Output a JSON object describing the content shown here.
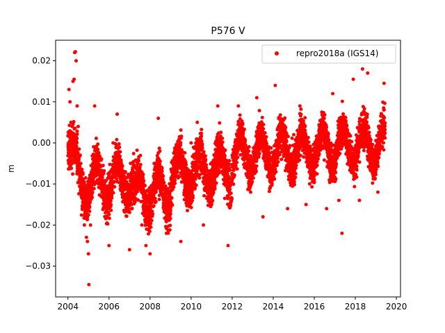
{
  "chart_data": {
    "type": "scatter",
    "title": "P576 V",
    "xlabel": "",
    "ylabel": "m",
    "xlim": [
      2003.4,
      2020.2
    ],
    "ylim": [
      -0.0375,
      0.025
    ],
    "x_ticks": [
      2004,
      2006,
      2008,
      2010,
      2012,
      2014,
      2016,
      2018,
      2020
    ],
    "y_ticks": [
      -0.03,
      -0.02,
      -0.01,
      0.0,
      0.01,
      0.02
    ],
    "x_tick_labels": [
      "2004",
      "2006",
      "2008",
      "2010",
      "2012",
      "2014",
      "2016",
      "2018",
      "2020"
    ],
    "y_tick_labels": [
      "−0.03",
      "−0.02",
      "−0.01",
      "0.00",
      "0.01",
      "0.02"
    ],
    "grid": false,
    "legend_position": "top-right",
    "series": [
      {
        "name": "repro2018a (IGS14)",
        "color": "#ff0000",
        "marker": "circle",
        "x_range": [
          2004.0,
          2019.45
        ],
        "points": [
          [
            2004.05,
            0.013
          ],
          [
            2004.1,
            0.01
          ],
          [
            2004.15,
            0.005
          ],
          [
            2004.2,
            0.002
          ],
          [
            2004.25,
            0.015
          ],
          [
            2004.3,
            0.0155
          ],
          [
            2004.33,
            0.022
          ],
          [
            2004.36,
            0.0222
          ],
          [
            2004.4,
            0.02
          ],
          [
            2004.45,
            0.009
          ],
          [
            2004.5,
            0.004
          ],
          [
            2004.6,
            -0.003
          ],
          [
            2004.7,
            -0.012
          ],
          [
            2004.8,
            -0.02
          ],
          [
            2004.9,
            -0.023
          ],
          [
            2004.95,
            -0.024
          ],
          [
            2005.0,
            -0.027
          ],
          [
            2005.02,
            -0.0345
          ],
          [
            2005.1,
            -0.02
          ],
          [
            2005.2,
            -0.012
          ],
          [
            2005.3,
            0.009
          ],
          [
            2005.5,
            -0.01
          ],
          [
            2005.8,
            -0.013
          ],
          [
            2006.0,
            -0.025
          ],
          [
            2006.2,
            0.0
          ],
          [
            2006.4,
            0.007
          ],
          [
            2006.6,
            -0.005
          ],
          [
            2006.8,
            -0.015
          ],
          [
            2007.0,
            -0.026
          ],
          [
            2007.2,
            -0.01
          ],
          [
            2007.4,
            -0.005
          ],
          [
            2007.6,
            -0.02
          ],
          [
            2007.8,
            -0.025
          ],
          [
            2008.0,
            -0.027
          ],
          [
            2008.2,
            -0.005
          ],
          [
            2008.4,
            0.006
          ],
          [
            2008.6,
            -0.01
          ],
          [
            2008.8,
            -0.022
          ],
          [
            2009.0,
            -0.015
          ],
          [
            2009.2,
            -0.002
          ],
          [
            2009.5,
            -0.024
          ],
          [
            2009.8,
            -0.01
          ],
          [
            2010.0,
            0.0
          ],
          [
            2010.3,
            0.005
          ],
          [
            2010.6,
            -0.02
          ],
          [
            2011.0,
            -0.015
          ],
          [
            2011.3,
            0.009
          ],
          [
            2011.6,
            -0.01
          ],
          [
            2011.8,
            -0.025
          ],
          [
            2012.0,
            -0.003
          ],
          [
            2012.3,
            0.009
          ],
          [
            2012.6,
            -0.006
          ],
          [
            2012.9,
            -0.012
          ],
          [
            2013.2,
            0.011
          ],
          [
            2013.5,
            -0.018
          ],
          [
            2013.8,
            -0.003
          ],
          [
            2014.1,
            0.014
          ],
          [
            2014.4,
            -0.004
          ],
          [
            2014.7,
            -0.016
          ],
          [
            2015.0,
            0.002
          ],
          [
            2015.3,
            0.009
          ],
          [
            2015.6,
            -0.015
          ],
          [
            2016.0,
            -0.008
          ],
          [
            2016.3,
            0.003
          ],
          [
            2016.6,
            -0.016
          ],
          [
            2016.9,
            0.012
          ],
          [
            2017.2,
            -0.014
          ],
          [
            2017.35,
            -0.022
          ],
          [
            2017.6,
            0.0
          ],
          [
            2017.9,
            0.0155
          ],
          [
            2018.2,
            -0.014
          ],
          [
            2018.35,
            0.018
          ],
          [
            2018.6,
            0.017
          ],
          [
            2018.9,
            -0.008
          ],
          [
            2019.1,
            -0.012
          ],
          [
            2019.4,
            0.0145
          ]
        ]
      }
    ]
  }
}
